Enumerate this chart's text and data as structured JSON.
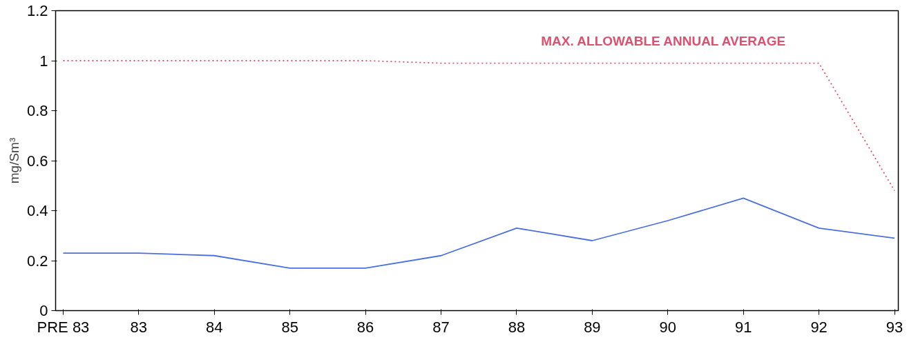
{
  "chart_data": {
    "type": "line",
    "ylabel": "mg/Sm³",
    "categories": [
      "PRE 83",
      "83",
      "84",
      "85",
      "86",
      "87",
      "88",
      "89",
      "90",
      "91",
      "92",
      "93"
    ],
    "series": [
      {
        "color": "#4a6fe0",
        "line_style": "solid",
        "values": [
          0.23,
          0.23,
          0.22,
          0.17,
          0.17,
          0.22,
          0.33,
          0.28,
          0.36,
          0.45,
          0.33,
          0.29
        ]
      },
      {
        "color": "#e0506e",
        "line_style": "dotted",
        "values": [
          1.0,
          1.0,
          1.0,
          1.0,
          1.0,
          0.99,
          0.99,
          0.99,
          0.99,
          0.99,
          0.99,
          0.48
        ]
      }
    ],
    "annotations": [
      "MAX.  ALLOWABLE  ANNUAL AVERAGE"
    ],
    "ylim": [
      0,
      1.2
    ],
    "yticks": [
      0,
      0.2,
      0.4,
      0.6,
      0.8,
      1,
      1.2
    ],
    "grid": false,
    "marker": "none"
  }
}
